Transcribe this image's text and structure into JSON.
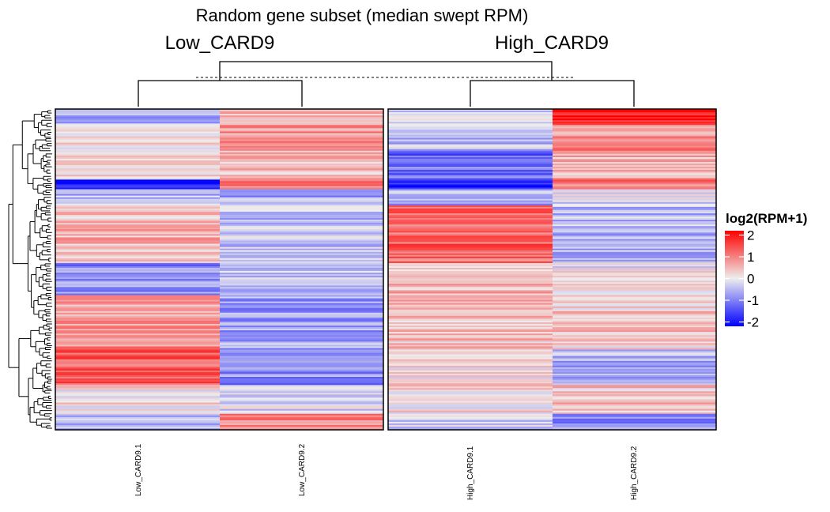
{
  "chart_data": {
    "type": "heatmap",
    "title": "Random gene subset (median swept RPM)",
    "column_groups": [
      "Low_CARD9",
      "High_CARD9"
    ],
    "columns": [
      "Low_CARD9.1",
      "Low_CARD9.2",
      "High_CARD9.1",
      "High_CARD9.2"
    ],
    "row_labels_shown": false,
    "legend": {
      "title": "log2(RPM+1)",
      "ticks": [
        "2",
        "1",
        "0",
        "-1",
        "-2"
      ],
      "range": [
        -2.2,
        2.2
      ],
      "placement": "right",
      "colors": {
        "low": "#0000ff",
        "mid": "#eeeeee",
        "high": "#ff0000"
      }
    },
    "row_dendrogram": true,
    "column_dendrogram": true,
    "value_profile": [
      {
        "from": 0.0,
        "to": 0.05,
        "values": [
          -0.6,
          0.5,
          -0.3,
          1.9
        ]
      },
      {
        "from": 0.05,
        "to": 0.13,
        "values": [
          0.1,
          0.8,
          -0.4,
          0.9
        ]
      },
      {
        "from": 0.13,
        "to": 0.22,
        "values": [
          0.3,
          0.5,
          -1.2,
          0.5
        ]
      },
      {
        "from": 0.22,
        "to": 0.25,
        "values": [
          -1.9,
          1.2,
          -1.8,
          1.0
        ]
      },
      {
        "from": 0.25,
        "to": 0.3,
        "values": [
          -0.5,
          -0.7,
          -0.6,
          -0.2
        ]
      },
      {
        "from": 0.3,
        "to": 0.48,
        "values": [
          0.5,
          -0.4,
          1.3,
          -0.5
        ]
      },
      {
        "from": 0.48,
        "to": 0.58,
        "values": [
          -0.9,
          -0.3,
          0.5,
          0.0
        ]
      },
      {
        "from": 0.58,
        "to": 0.75,
        "values": [
          0.8,
          -0.7,
          0.4,
          0.3
        ]
      },
      {
        "from": 0.75,
        "to": 0.86,
        "values": [
          1.3,
          -0.9,
          0.1,
          -0.6
        ]
      },
      {
        "from": 0.86,
        "to": 0.95,
        "values": [
          0.2,
          -0.2,
          0.2,
          0.4
        ]
      },
      {
        "from": 0.95,
        "to": 1.0,
        "values": [
          -0.4,
          1.0,
          -0.2,
          -0.8
        ]
      }
    ]
  }
}
